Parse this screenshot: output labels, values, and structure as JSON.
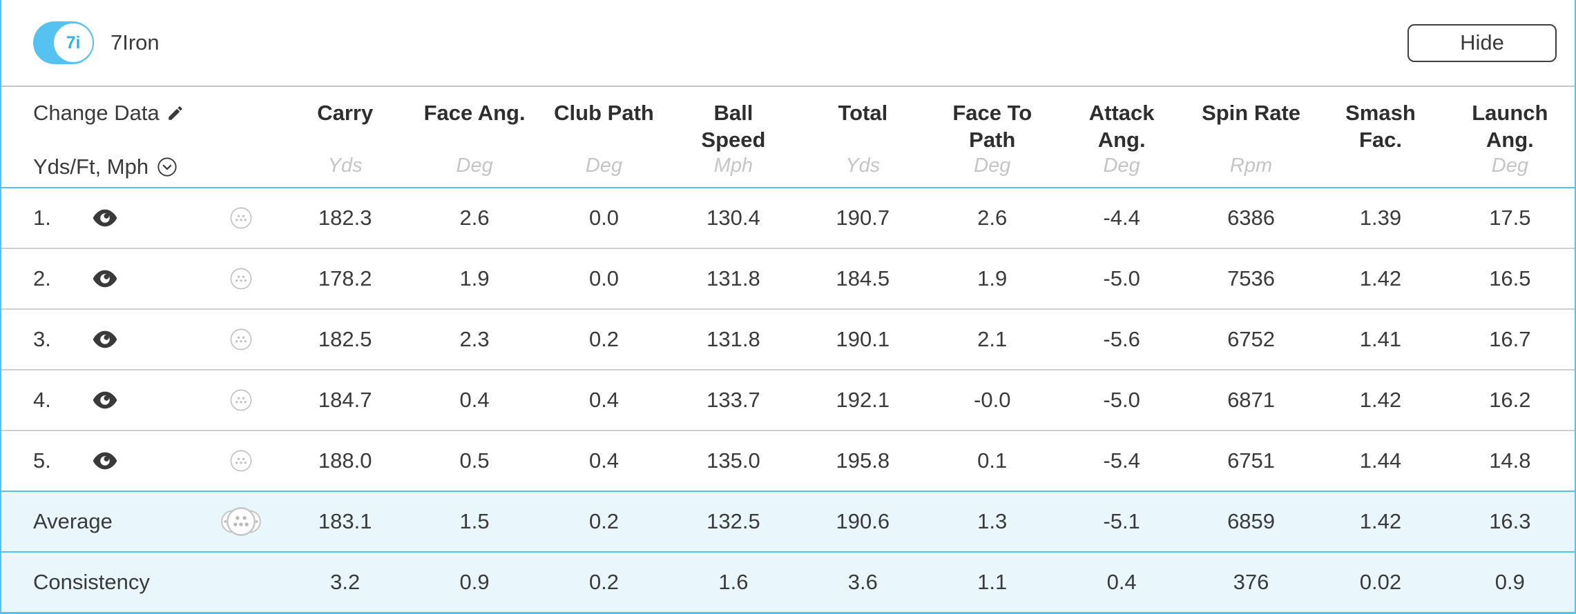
{
  "colors": {
    "accent_blue": "#55C2EF",
    "row_highlight": "#E9F7FC"
  },
  "topbar": {
    "toggle_knob_label": "7i",
    "club_label": "7Iron",
    "hide_button_label": "Hide"
  },
  "table": {
    "change_data_label": "Change Data",
    "units_selector_label": "Yds/Ft, Mph",
    "columns": [
      {
        "label": "Carry",
        "unit": "Yds"
      },
      {
        "label": "Face Ang.",
        "unit": "Deg"
      },
      {
        "label": "Club Path",
        "unit": "Deg"
      },
      {
        "label": "Ball\nSpeed",
        "unit": "Mph"
      },
      {
        "label": "Total",
        "unit": "Yds"
      },
      {
        "label": "Face To\nPath",
        "unit": "Deg"
      },
      {
        "label": "Attack\nAng.",
        "unit": "Deg"
      },
      {
        "label": "Spin Rate",
        "unit": "Rpm"
      },
      {
        "label": "Smash\nFac.",
        "unit": ""
      },
      {
        "label": "Launch\nAng.",
        "unit": "Deg"
      }
    ],
    "shots": [
      {
        "index": "1.",
        "values": [
          "182.3",
          "2.6",
          "0.0",
          "130.4",
          "190.7",
          "2.6",
          "-4.4",
          "6386",
          "1.39",
          "17.5"
        ]
      },
      {
        "index": "2.",
        "values": [
          "178.2",
          "1.9",
          "0.0",
          "131.8",
          "184.5",
          "1.9",
          "-5.0",
          "7536",
          "1.42",
          "16.5"
        ]
      },
      {
        "index": "3.",
        "values": [
          "182.5",
          "2.3",
          "0.2",
          "131.8",
          "190.1",
          "2.1",
          "-5.6",
          "6752",
          "1.41",
          "16.7"
        ]
      },
      {
        "index": "4.",
        "values": [
          "184.7",
          "0.4",
          "0.4",
          "133.7",
          "192.1",
          "-0.0",
          "-5.0",
          "6871",
          "1.42",
          "16.2"
        ]
      },
      {
        "index": "5.",
        "values": [
          "188.0",
          "0.5",
          "0.4",
          "135.0",
          "195.8",
          "0.1",
          "-5.4",
          "6751",
          "1.44",
          "14.8"
        ]
      }
    ],
    "average": {
      "label": "Average",
      "values": [
        "183.1",
        "1.5",
        "0.2",
        "132.5",
        "190.6",
        "1.3",
        "-5.1",
        "6859",
        "1.42",
        "16.3"
      ]
    },
    "consistency": {
      "label": "Consistency",
      "values": [
        "3.2",
        "0.9",
        "0.2",
        "1.6",
        "3.6",
        "1.1",
        "0.4",
        "376",
        "0.02",
        "0.9"
      ]
    }
  }
}
